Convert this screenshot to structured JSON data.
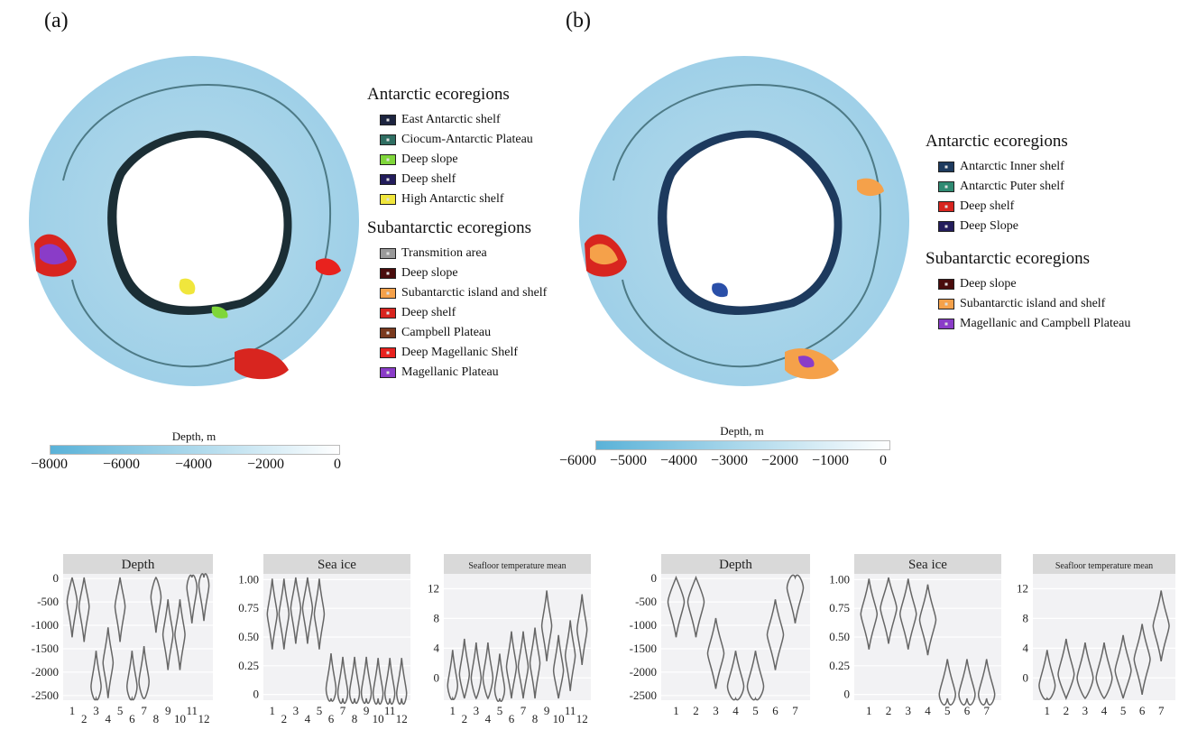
{
  "panels": [
    {
      "label": "(a)",
      "legend_groups": [
        {
          "heading": "Antarctic ecoregions",
          "items": [
            {
              "label": "East Antarctic shelf",
              "color": "#1d2540"
            },
            {
              "label": "Ciocum-Antarctic Plateau",
              "color": "#2f6e62"
            },
            {
              "label": "Deep slope",
              "color": "#7fd63a"
            },
            {
              "label": "Deep shelf",
              "color": "#231d5c"
            },
            {
              "label": "High Antarctic shelf",
              "color": "#f0e63c"
            }
          ]
        },
        {
          "heading": "Subantarctic ecoregions",
          "items": [
            {
              "label": "Transmition area",
              "color": "#9a9a9a"
            },
            {
              "label": "Deep slope",
              "color": "#4a0c0c"
            },
            {
              "label": "Subantarctic island and shelf",
              "color": "#f5a14a"
            },
            {
              "label": "Deep shelf",
              "color": "#d8251f"
            },
            {
              "label": "Campbell Plateau",
              "color": "#7a3a1e"
            },
            {
              "label": "Deep Magellanic Shelf",
              "color": "#e8221e"
            },
            {
              "label": "Magellanic Plateau",
              "color": "#8a3cc8"
            }
          ]
        }
      ],
      "colorbar": {
        "title": "Depth, m",
        "ticks": [
          "−8000",
          "−6000",
          "−4000",
          "−2000",
          "0"
        ]
      }
    },
    {
      "label": "(b)",
      "legend_groups": [
        {
          "heading": "Antarctic ecoregions",
          "items": [
            {
              "label": "Antarctic Inner shelf",
              "color": "#1d3a5e"
            },
            {
              "label": "Antarctic Puter shelf",
              "color": "#2f8a72"
            },
            {
              "label": "Deep shelf",
              "color": "#d8251f"
            },
            {
              "label": "Deep Slope",
              "color": "#231d5c"
            }
          ]
        },
        {
          "heading": "Subantarctic ecoregions",
          "items": [
            {
              "label": "Deep slope",
              "color": "#4a0c0c"
            },
            {
              "label": "Subantarctic island and shelf",
              "color": "#f5a14a"
            },
            {
              "label": "Magellanic and Campbell Plateau",
              "color": "#8a3cc8"
            }
          ]
        }
      ],
      "colorbar": {
        "title": "Depth, m",
        "ticks": [
          "−6000",
          "−5000",
          "−4000",
          "−3000",
          "−2000",
          "−1000",
          "0"
        ]
      }
    }
  ],
  "chart_data": [
    {
      "type": "violin",
      "title": "Depth",
      "categories": [
        "1",
        "2",
        "3",
        "4",
        "5",
        "6",
        "7",
        "8",
        "9",
        "10",
        "11",
        "12"
      ],
      "yticks": [
        "0",
        "-500",
        "-1000",
        "-1500",
        "-2000",
        "-2500"
      ],
      "ylim": [
        -2600,
        100
      ],
      "medians": [
        -500,
        -600,
        -2300,
        -1800,
        -600,
        -2300,
        -2200,
        -400,
        -1200,
        -1200,
        -200,
        -150
      ]
    },
    {
      "type": "violin",
      "title": "Sea ice",
      "categories": [
        "1",
        "2",
        "3",
        "4",
        "5",
        "6",
        "7",
        "8",
        "9",
        "10",
        "11",
        "12"
      ],
      "yticks": [
        "1.00",
        "0.75",
        "0.50",
        "0.25",
        "0"
      ],
      "ylim": [
        -0.05,
        1.05
      ],
      "medians": [
        0.7,
        0.7,
        0.75,
        0.75,
        0.7,
        0.05,
        0.02,
        0.02,
        0.02,
        0.01,
        0.01,
        0.01
      ]
    },
    {
      "type": "violin",
      "title": "Seafloor temperature mean",
      "categories": [
        "1",
        "2",
        "3",
        "4",
        "5",
        "6",
        "7",
        "8",
        "9",
        "10",
        "11",
        "12"
      ],
      "yticks": [
        "12",
        "8",
        "4",
        "0"
      ],
      "ylim": [
        -3,
        14
      ],
      "medians": [
        -1,
        0.5,
        0,
        0,
        -1.5,
        1.5,
        1.5,
        2,
        7,
        1,
        3,
        6.5
      ]
    },
    {
      "type": "violin",
      "title": "Depth",
      "categories": [
        "1",
        "2",
        "3",
        "4",
        "5",
        "6",
        "7"
      ],
      "yticks": [
        "0",
        "-500",
        "-1000",
        "-1500",
        "-2000",
        "-2500"
      ],
      "ylim": [
        -2600,
        100
      ],
      "medians": [
        -500,
        -500,
        -1600,
        -2300,
        -2300,
        -1200,
        -200
      ]
    },
    {
      "type": "violin",
      "title": "Sea ice",
      "categories": [
        "1",
        "2",
        "3",
        "4",
        "5",
        "6",
        "7"
      ],
      "yticks": [
        "1.00",
        "0.75",
        "0.50",
        "0.25",
        "0"
      ],
      "ylim": [
        -0.05,
        1.05
      ],
      "medians": [
        0.7,
        0.75,
        0.7,
        0.65,
        0.0,
        0.0,
        0.0
      ]
    },
    {
      "type": "violin",
      "title": "Seafloor temperature mean",
      "categories": [
        "1",
        "2",
        "3",
        "4",
        "5",
        "6",
        "7"
      ],
      "yticks": [
        "12",
        "8",
        "4",
        "0"
      ],
      "ylim": [
        -3,
        14
      ],
      "medians": [
        -1,
        0.5,
        0,
        0,
        1,
        2.5,
        7
      ]
    }
  ]
}
